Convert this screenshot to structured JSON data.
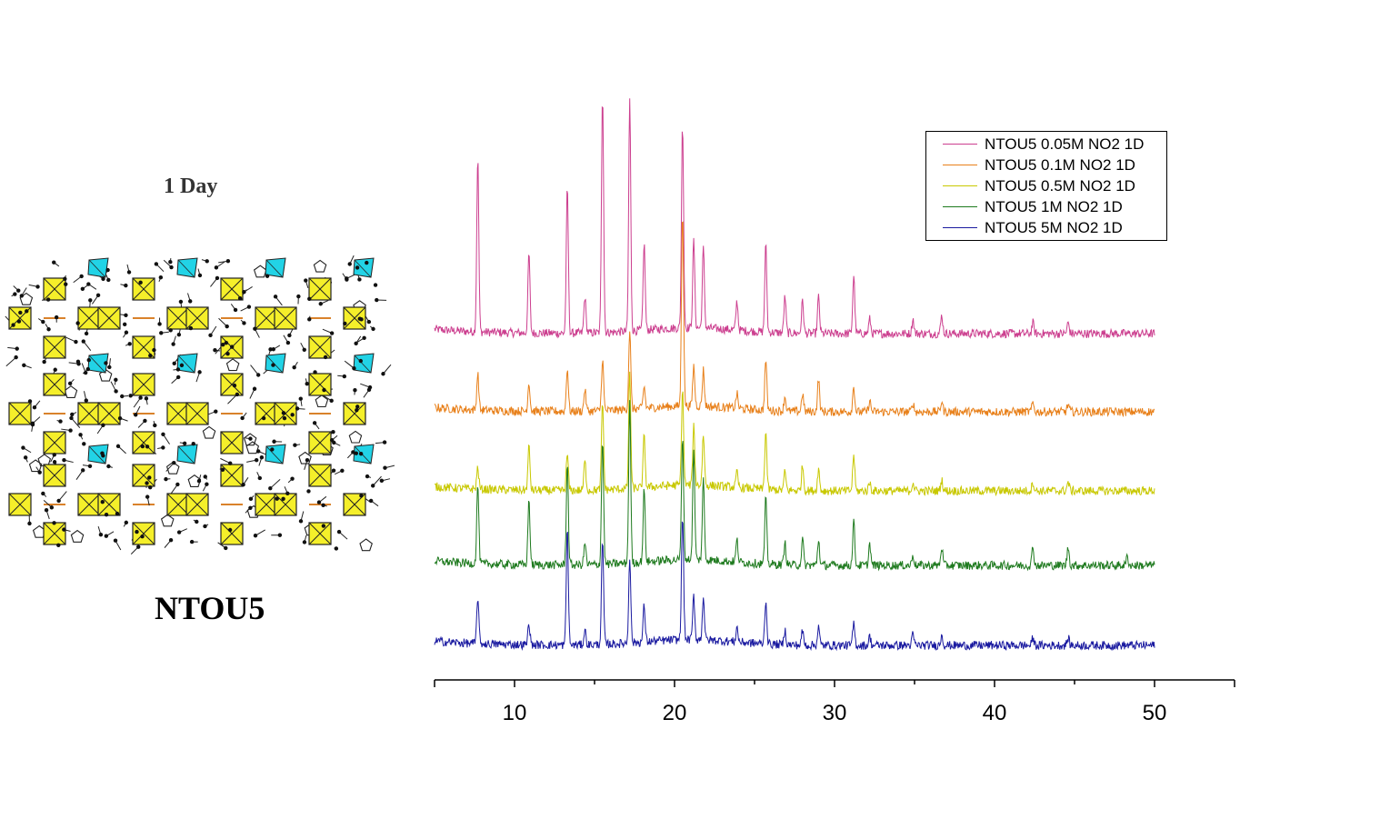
{
  "left_panel": {
    "day_label": "1 Day",
    "compound_name": "NTOU5"
  },
  "colors": {
    "polyhedron_yellow": "#f5ef2a",
    "polyhedron_cyan": "#22d3e6",
    "atom_black": "#111111",
    "bond_orange": "#d9822b"
  },
  "chart_data": {
    "type": "line",
    "title": "",
    "xlabel": "",
    "ylabel": "",
    "xlim": [
      5,
      55
    ],
    "x_ticks": [
      10,
      20,
      30,
      40,
      50
    ],
    "x_range_measured": [
      5,
      50
    ],
    "legend_position": "top-right",
    "series": [
      {
        "name": "NTOU5 0.05M NO2 1D",
        "color": "#cc3f8f",
        "offset": 4.0,
        "peaks": [
          [
            7.7,
            2.4
          ],
          [
            10.9,
            1.1
          ],
          [
            13.3,
            2.0
          ],
          [
            14.4,
            0.5
          ],
          [
            15.5,
            3.3
          ],
          [
            17.2,
            3.2
          ],
          [
            18.1,
            1.2
          ],
          [
            20.5,
            2.8
          ],
          [
            21.2,
            1.2
          ],
          [
            21.8,
            1.1
          ],
          [
            23.9,
            0.4
          ],
          [
            25.7,
            1.2
          ],
          [
            26.9,
            0.5
          ],
          [
            28.0,
            0.45
          ],
          [
            29.0,
            0.5
          ],
          [
            31.2,
            0.8
          ],
          [
            32.2,
            0.2
          ],
          [
            34.9,
            0.2
          ],
          [
            36.7,
            0.25
          ],
          [
            42.4,
            0.15
          ],
          [
            44.6,
            0.15
          ]
        ]
      },
      {
        "name": "NTOU5 0.1M NO2 1D",
        "color": "#e8801a",
        "offset": 3.0,
        "peaks": [
          [
            7.7,
            0.5
          ],
          [
            10.9,
            0.4
          ],
          [
            13.3,
            0.6
          ],
          [
            14.4,
            0.3
          ],
          [
            15.5,
            0.7
          ],
          [
            17.2,
            1.1
          ],
          [
            18.1,
            0.3
          ],
          [
            20.5,
            2.7
          ],
          [
            21.2,
            0.55
          ],
          [
            21.8,
            0.5
          ],
          [
            23.9,
            0.2
          ],
          [
            25.7,
            0.7
          ],
          [
            26.9,
            0.2
          ],
          [
            28.0,
            0.25
          ],
          [
            29.0,
            0.45
          ],
          [
            31.2,
            0.35
          ],
          [
            32.2,
            0.15
          ],
          [
            34.9,
            0.12
          ],
          [
            36.7,
            0.15
          ],
          [
            42.4,
            0.12
          ],
          [
            44.6,
            0.1
          ]
        ]
      },
      {
        "name": "NTOU5 0.5M NO2 1D",
        "color": "#c8c800",
        "offset": 2.0,
        "peaks": [
          [
            7.7,
            0.3
          ],
          [
            10.9,
            0.6
          ],
          [
            13.3,
            0.5
          ],
          [
            14.4,
            0.4
          ],
          [
            15.5,
            1.2
          ],
          [
            17.2,
            1.6
          ],
          [
            18.1,
            0.7
          ],
          [
            20.5,
            1.3
          ],
          [
            21.2,
            0.8
          ],
          [
            21.8,
            0.7
          ],
          [
            23.9,
            0.2
          ],
          [
            25.7,
            0.8
          ],
          [
            26.9,
            0.25
          ],
          [
            28.0,
            0.35
          ],
          [
            29.0,
            0.3
          ],
          [
            31.2,
            0.5
          ],
          [
            32.2,
            0.12
          ],
          [
            34.9,
            0.12
          ],
          [
            36.7,
            0.15
          ],
          [
            42.4,
            0.12
          ],
          [
            44.6,
            0.12
          ]
        ]
      },
      {
        "name": "NTOU5 1M NO2 1D",
        "color": "#1e7a1e",
        "offset": 1.0,
        "peaks": [
          [
            7.7,
            1.1
          ],
          [
            10.9,
            0.9
          ],
          [
            13.3,
            1.4
          ],
          [
            14.4,
            0.3
          ],
          [
            15.5,
            1.7
          ],
          [
            17.2,
            2.2
          ],
          [
            18.1,
            1.0
          ],
          [
            20.5,
            1.7
          ],
          [
            21.2,
            1.5
          ],
          [
            21.8,
            1.1
          ],
          [
            23.9,
            0.3
          ],
          [
            25.7,
            0.9
          ],
          [
            26.9,
            0.3
          ],
          [
            28.0,
            0.35
          ],
          [
            29.0,
            0.35
          ],
          [
            31.2,
            0.6
          ],
          [
            32.2,
            0.3
          ],
          [
            34.9,
            0.15
          ],
          [
            36.7,
            0.25
          ],
          [
            42.4,
            0.25
          ],
          [
            44.6,
            0.25
          ],
          [
            48.3,
            0.12
          ]
        ]
      },
      {
        "name": "NTOU5 5M NO2 1D",
        "color": "#1a1aa0",
        "offset": 0.0,
        "peaks": [
          [
            7.7,
            0.65
          ],
          [
            10.9,
            0.3
          ],
          [
            13.3,
            1.6
          ],
          [
            14.4,
            0.2
          ],
          [
            15.5,
            1.4
          ],
          [
            17.2,
            1.2
          ],
          [
            18.1,
            0.5
          ],
          [
            20.5,
            1.7
          ],
          [
            21.2,
            0.6
          ],
          [
            21.8,
            0.6
          ],
          [
            23.9,
            0.2
          ],
          [
            25.7,
            0.6
          ],
          [
            26.9,
            0.2
          ],
          [
            28.0,
            0.2
          ],
          [
            29.0,
            0.25
          ],
          [
            31.2,
            0.3
          ],
          [
            32.2,
            0.12
          ],
          [
            34.9,
            0.15
          ],
          [
            36.7,
            0.15
          ],
          [
            42.4,
            0.1
          ],
          [
            44.6,
            0.1
          ]
        ]
      }
    ]
  }
}
